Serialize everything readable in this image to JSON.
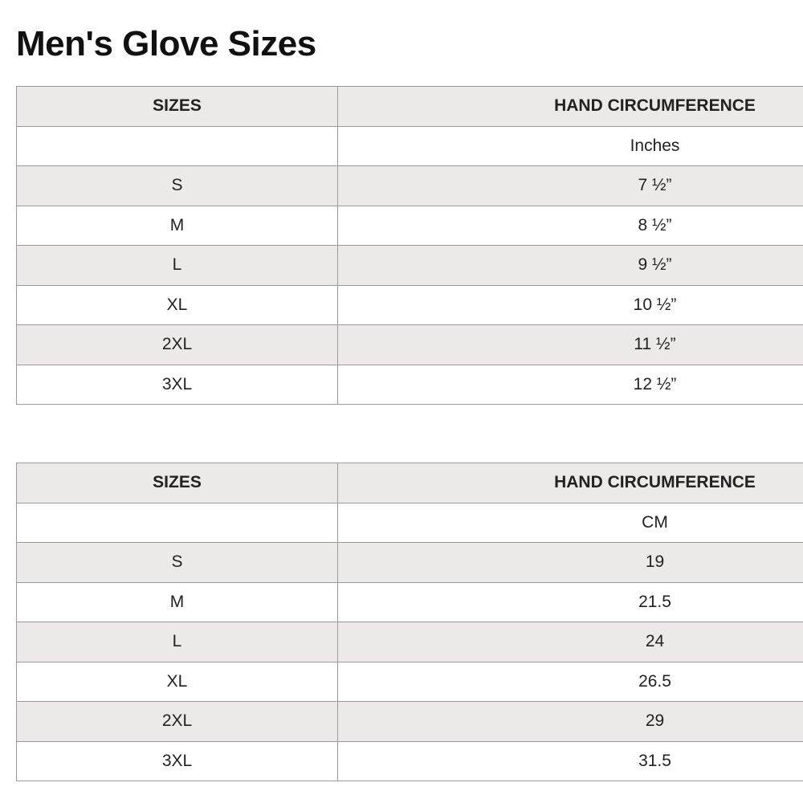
{
  "title": "Men's Glove Sizes",
  "tables": [
    {
      "header": [
        "SIZES",
        "HAND CIRCUMFERENCE"
      ],
      "unit": "Inches",
      "rows": [
        [
          "S",
          "7 ½”"
        ],
        [
          "M",
          "8 ½”"
        ],
        [
          "L",
          "9 ½”"
        ],
        [
          "XL",
          "10 ½”"
        ],
        [
          "2XL",
          "11 ½”"
        ],
        [
          "3XL",
          "12 ½”"
        ]
      ]
    },
    {
      "header": [
        "SIZES",
        "HAND CIRCUMFERENCE"
      ],
      "unit": "CM",
      "rows": [
        [
          "S",
          "19"
        ],
        [
          "M",
          "21.5"
        ],
        [
          "L",
          "24"
        ],
        [
          "XL",
          "26.5"
        ],
        [
          "2XL",
          "29"
        ],
        [
          "3XL",
          "31.5"
        ]
      ]
    }
  ]
}
